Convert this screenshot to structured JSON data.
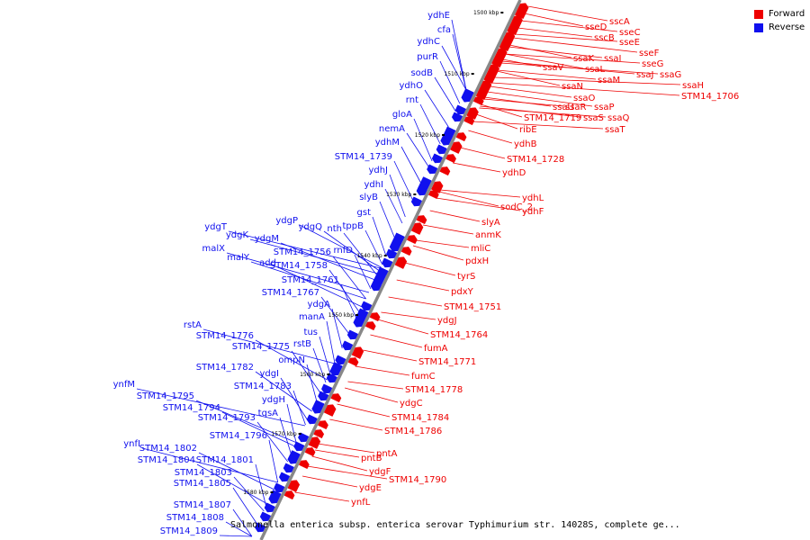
{
  "legend": {
    "forward": {
      "label": "Forward",
      "color": "#ee0000"
    },
    "reverse": {
      "label": "Reverse",
      "color": "#1010ee"
    }
  },
  "caption": "Salmonella enterica subsp. enterica serovar Typhimurium str. 14028S, complete ge...",
  "ticks": [
    "1500 kbp",
    "1510 kbp",
    "1520 kbp",
    "1530 kbp",
    "1540 kbp",
    "1550 kbp",
    "1560 kbp",
    "1570 kbp",
    "1580 kbp"
  ],
  "forward_genes": [
    "sscA",
    "sseD",
    "sseC",
    "sscB",
    "sseE",
    "sseF",
    "ssaK",
    "ssaI",
    "sseG",
    "ssaV",
    "ssaL",
    "ssaJ",
    "ssaG",
    "ssaM",
    "ssaH",
    "ssaN",
    "STM14_1706",
    "ssaO",
    "ssaU",
    "ssaR",
    "ssaP",
    "STM14_1719",
    "ssaS",
    "ssaQ",
    "ssaT",
    "ribE",
    "ydhB",
    "STM14_1728",
    "ydhD",
    "ydhL",
    "sodC_2",
    "ydhF",
    "slyA",
    "anmK",
    "mliC",
    "pdxH",
    "tyrS",
    "pdxY",
    "STM14_1751",
    "ydgJ",
    "STM14_1764",
    "fumA",
    "STM14_1771",
    "fumC",
    "STM14_1778",
    "ydgC",
    "STM14_1784",
    "STM14_1786",
    "pntA",
    "pntB",
    "ydgF",
    "STM14_1790",
    "ydgE",
    "ynfL"
  ],
  "reverse_genes": [
    "ydhE",
    "cfa",
    "ydhC",
    "purR",
    "sodB",
    "ydhO",
    "rnt",
    "gloA",
    "nemA",
    "ydhM",
    "STM14_1739",
    "ydhJ",
    "ydhI",
    "slyB",
    "gst",
    "ydgP",
    "tppB",
    "ydgT",
    "ydgQ",
    "nth",
    "ydgK",
    "ydgM",
    "malX",
    "STM14_1756",
    "rnfD",
    "malY",
    "add",
    "STM14_1758",
    "STM14_1761",
    "STM14_1767",
    "ydgA",
    "manA",
    "rstA",
    "tus",
    "STM14_1776",
    "STM14_1775",
    "rstB",
    "ompN",
    "STM14_1782",
    "ydgI",
    "STM14_1783",
    "ynfM",
    "ydgH",
    "STM14_1795",
    "STM14_1794",
    "tqsA",
    "STM14_1793",
    "STM14_1796",
    "ynfI",
    "STM14_1802",
    "STM14_1804",
    "STM14_1801",
    "STM14_1803",
    "STM14_1805",
    "STM14_1807",
    "STM14_1808",
    "STM14_1809"
  ]
}
